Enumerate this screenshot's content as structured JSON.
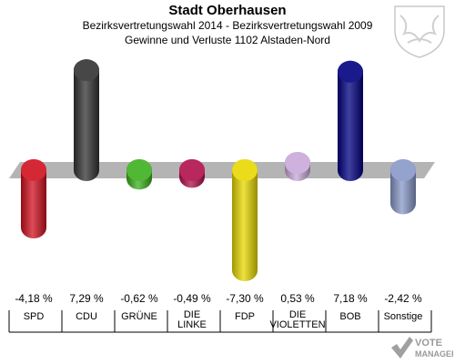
{
  "header": {
    "title": "Stadt Oberhausen",
    "subtitle": "Bezirksvertretungswahl 2014 - Bezirksvertretungswahl 2009",
    "subtitle2": "Gewinne und Verluste 1102 Alstaden-Nord"
  },
  "chart_data": {
    "type": "bar",
    "categories": [
      "SPD",
      "CDU",
      "GRÜNE",
      "DIE LINKE",
      "FDP",
      "DIE VIOLETTEN",
      "BOB",
      "Sonstige"
    ],
    "values": [
      -4.18,
      7.29,
      -0.62,
      -0.49,
      -7.3,
      0.53,
      7.18,
      -2.42
    ],
    "value_labels": [
      "-4,18 %",
      "7,29 %",
      "-0,62 %",
      "-0,49 %",
      "-7,30 %",
      "0,53 %",
      "7,18 %",
      "-2,42 %"
    ],
    "category_labels": [
      [
        "SPD"
      ],
      [
        "CDU"
      ],
      [
        "GRÜNE"
      ],
      [
        "DIE",
        "LINKE"
      ],
      [
        "FDP"
      ],
      [
        "DIE",
        "VIOLETTEN"
      ],
      [
        "BOB"
      ],
      [
        "Sonstige"
      ]
    ],
    "colors": [
      "#d0101e",
      "#333333",
      "#3cb01e",
      "#b0104a",
      "#e8d800",
      "#c8a8d8",
      "#000080",
      "#8898c8"
    ],
    "unit": "%",
    "ylim": [
      -7.3,
      7.3
    ]
  },
  "logo": {
    "line1": "VOTE",
    "line2": "MANAGER"
  }
}
